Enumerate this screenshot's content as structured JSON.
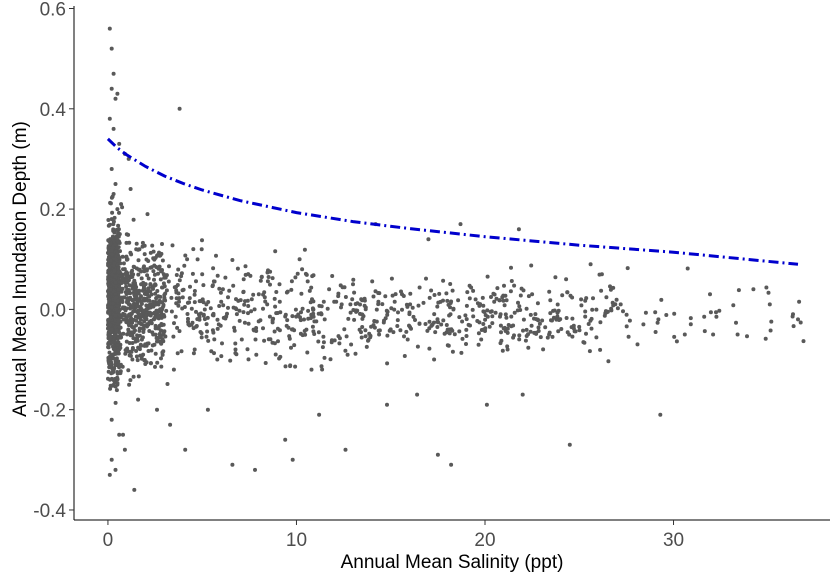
{
  "chart_data": {
    "type": "scatter",
    "title": "",
    "xlabel": "Annual Mean Salinity (ppt)",
    "ylabel": "Annual Mean Inundation Depth (m)",
    "xlim": [
      -1.8,
      38.3
    ],
    "ylim": [
      -0.42,
      0.605
    ],
    "x_ticks": [
      0,
      10,
      20,
      30
    ],
    "x_tick_labels": [
      "0",
      "10",
      "20",
      "30"
    ],
    "y_ticks": [
      -0.4,
      -0.2,
      0.0,
      0.2,
      0.4,
      0.6
    ],
    "y_tick_labels": [
      "-0.4",
      "-0.2",
      "0.0",
      "0.2",
      "0.4",
      "0.6"
    ],
    "grid": false,
    "legend": "none",
    "point_color": "#595959",
    "line_color": "#0000cd",
    "point_count_approx": 2000,
    "series": [
      {
        "kind": "points",
        "x": [
          0.1,
          0.2,
          0.3,
          0.2,
          0.4,
          0.5,
          0.1,
          0.3,
          0.6,
          0.9,
          1.1,
          0.2,
          0.4,
          3.8,
          0.3,
          0.7,
          1.2,
          0.5,
          0.2,
          1.0,
          0.1,
          0.4,
          0.8,
          1.5,
          2.1,
          2.5,
          3.0,
          1.8,
          0.6,
          0.3,
          4.2,
          5.0,
          6.1,
          7.2,
          8.0,
          9.1,
          10.3,
          11.5,
          12.4,
          13.0,
          14.2,
          15.6,
          17.0,
          18.7,
          19.5,
          21.8,
          22.5,
          24.3,
          25.6,
          26.2,
          0.5,
          1.3,
          2.4,
          3.5,
          4.6,
          5.8,
          7.1,
          8.9,
          10.8,
          12.9,
          15.0,
          17.3,
          19.8,
          21.2,
          23.4,
          25.1,
          27.2,
          28.4,
          29.2,
          30.6,
          32.1,
          33.4,
          36.6,
          0.2,
          0.8,
          1.6,
          2.6,
          3.3,
          4.1,
          5.3,
          6.6,
          7.8,
          9.4,
          9.8,
          11.2,
          12.6,
          14.8,
          16.4,
          17.5,
          18.2,
          20.1,
          22.0,
          24.5,
          29.3,
          0.4,
          0.9,
          0.1,
          0.2,
          0.6,
          1.4
        ],
        "y": [
          0.56,
          0.52,
          0.47,
          0.44,
          0.42,
          0.43,
          0.38,
          0.36,
          0.33,
          0.31,
          0.3,
          0.28,
          0.25,
          0.4,
          0.23,
          0.21,
          0.24,
          0.2,
          0.18,
          0.15,
          0.12,
          0.1,
          0.08,
          0.12,
          0.19,
          0.05,
          0.02,
          -0.03,
          -0.08,
          -0.12,
          0.1,
          0.07,
          0.04,
          0.06,
          0.03,
          0.05,
          0.08,
          -0.02,
          0.01,
          0.05,
          0.17,
          0.03,
          0.14,
          0.17,
          0.02,
          0.16,
          0.03,
          0.06,
          0.09,
          0.07,
          -0.15,
          -0.1,
          -0.05,
          -0.12,
          -0.08,
          -0.1,
          -0.06,
          -0.09,
          -0.12,
          -0.07,
          -0.04,
          -0.1,
          -0.06,
          -0.08,
          -0.05,
          0.02,
          0.01,
          -0.03,
          -0.02,
          -0.05,
          -0.05,
          -0.05,
          -0.02,
          -0.22,
          -0.25,
          -0.18,
          -0.2,
          -0.23,
          -0.28,
          -0.2,
          -0.31,
          -0.32,
          -0.26,
          -0.3,
          -0.21,
          -0.28,
          -0.19,
          -0.17,
          -0.29,
          -0.31,
          -0.19,
          -0.17,
          -0.27,
          -0.21,
          -0.32,
          -0.28,
          -0.33,
          -0.3,
          -0.25,
          -0.36
        ]
      },
      {
        "kind": "trend-line",
        "style": "dash-dot",
        "x": [
          0,
          0.5,
          1,
          2,
          3,
          4,
          5,
          7,
          10,
          13,
          16,
          20,
          25,
          30,
          36.6
        ],
        "y": [
          0.34,
          0.322,
          0.308,
          0.285,
          0.266,
          0.251,
          0.238,
          0.217,
          0.193,
          0.175,
          0.161,
          0.145,
          0.128,
          0.114,
          0.09
        ]
      }
    ]
  }
}
